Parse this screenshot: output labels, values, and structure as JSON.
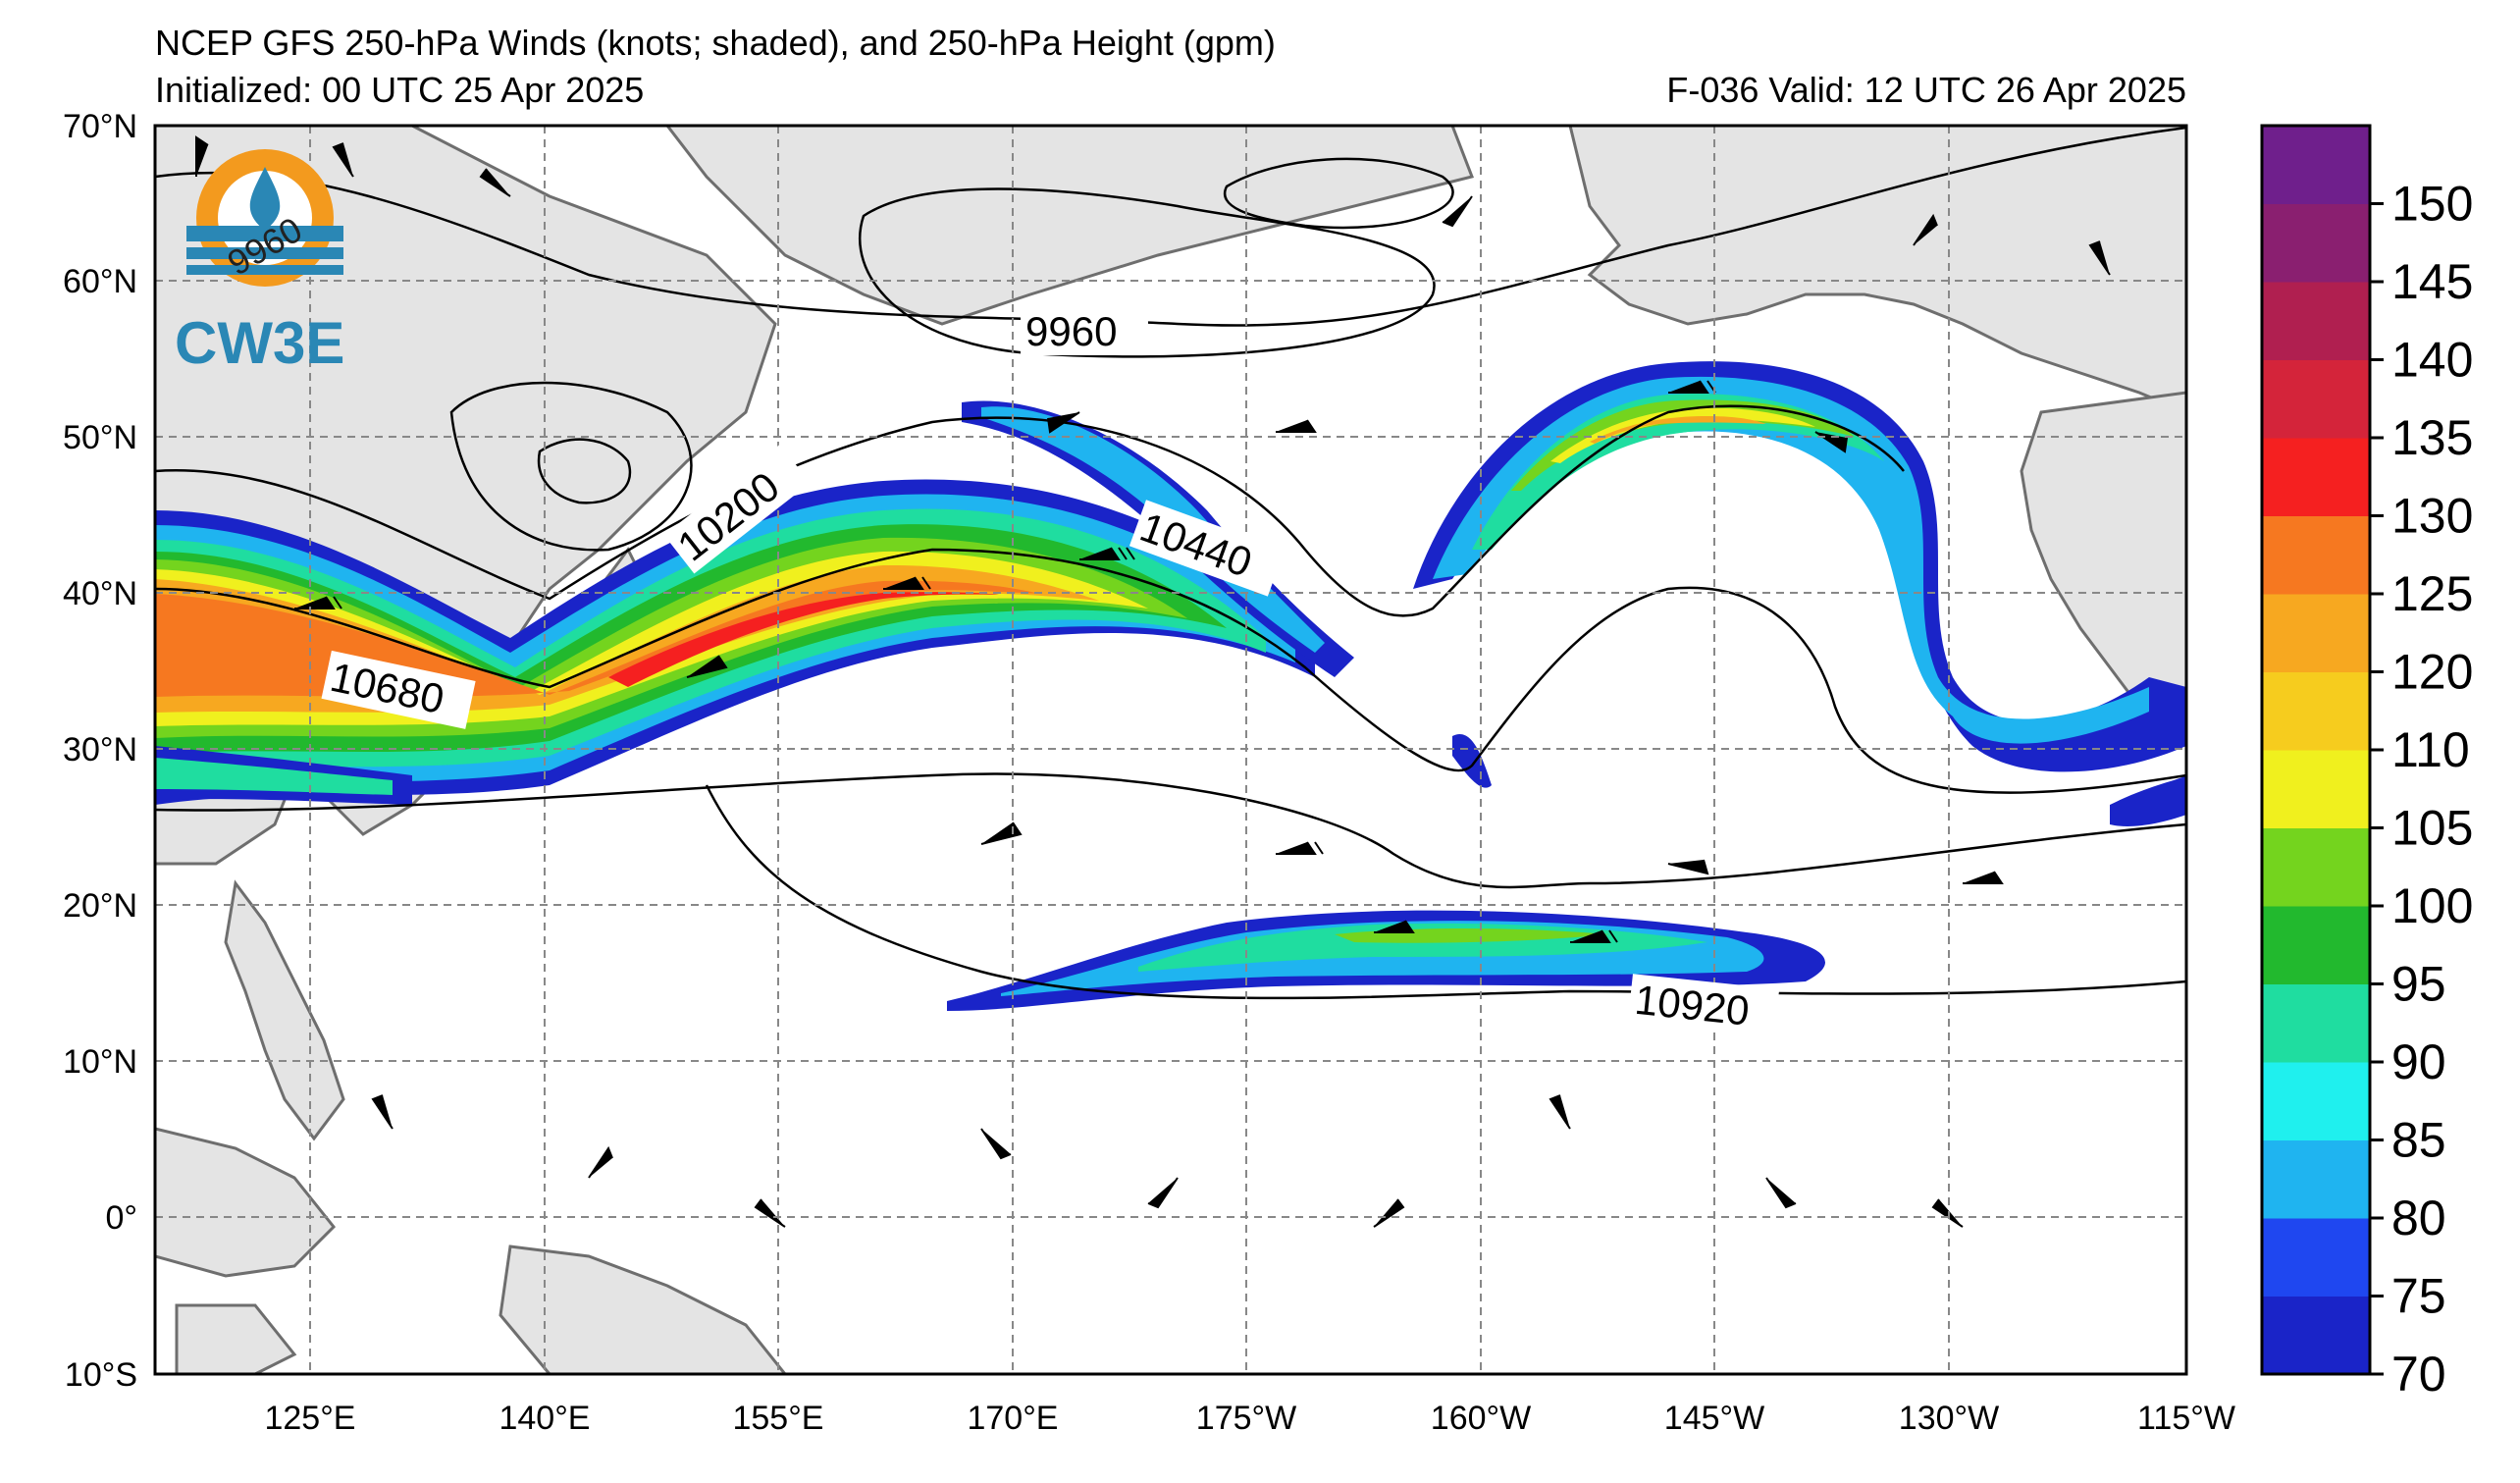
{
  "header": {
    "title": "NCEP GFS 250-hPa Winds (knots; shaded), and 250-hPa Height (gpm)",
    "initialized": "Initialized: 00 UTC 25 Apr 2025",
    "valid": "F-036  Valid: 12 UTC 26 Apr 2025"
  },
  "logo": {
    "text": "CW3E",
    "overlay_label": "9960",
    "icon": "water-drop-ring-logo"
  },
  "axes": {
    "lat_labels": [
      "70°N",
      "60°N",
      "50°N",
      "40°N",
      "30°N",
      "20°N",
      "10°N",
      "0°",
      "10°S"
    ],
    "lon_labels": [
      "125°E",
      "140°E",
      "155°E",
      "170°E",
      "175°W",
      "160°W",
      "145°W",
      "130°W",
      "115°W"
    ]
  },
  "contour_labels": [
    "9960",
    "10200",
    "10440",
    "10680",
    "10920"
  ],
  "colorbar": {
    "labels": [
      "70",
      "75",
      "80",
      "85",
      "90",
      "95",
      "100",
      "105",
      "110",
      "120",
      "125",
      "130",
      "135",
      "140",
      "145",
      "150"
    ],
    "colors": [
      "#1a24c8",
      "#1f47f0",
      "#1fb4f0",
      "#1ff0ee",
      "#1fdda0",
      "#22b92e",
      "#74d41e",
      "#f0f01e",
      "#f6cc1e",
      "#f7a820",
      "#f67820",
      "#f52020",
      "#d4243a",
      "#b01f50",
      "#8a1f70",
      "#6f1f8c"
    ]
  }
}
